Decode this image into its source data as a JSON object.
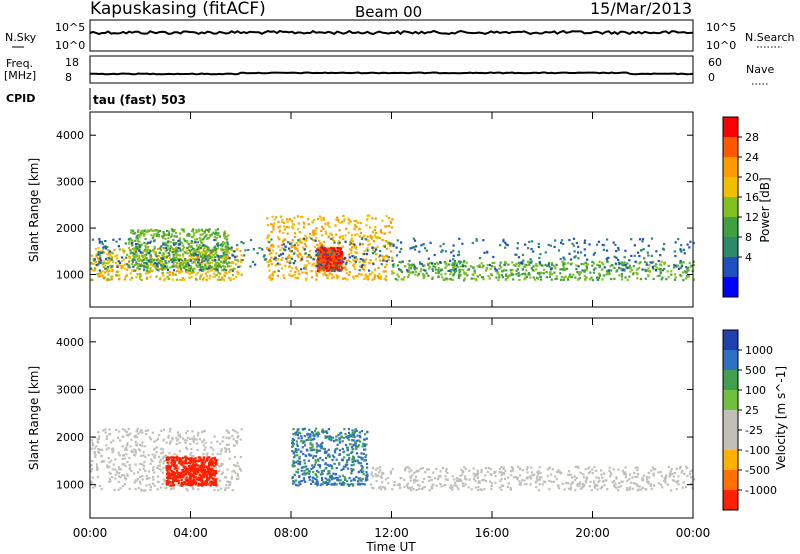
{
  "header": {
    "station": "Kapuskasing (fitACF)",
    "beam": "Beam 00",
    "date": "15/Mar/2013"
  },
  "top_panels": {
    "nsky_label": "N.Sky",
    "nsky_ticks": [
      "10^5",
      "10^0"
    ],
    "nsearch_label": "N.Search",
    "nsearch_ticks": [
      "10^5",
      "10^0"
    ],
    "freq_label_1": "Freq.",
    "freq_label_2": "[MHz]",
    "freq_ticks": [
      "18",
      "8"
    ],
    "nave_label": "Nave",
    "nave_ticks": [
      "60",
      "0"
    ],
    "cpid_label": "CPID",
    "cpid_text": "tau (fast) 503"
  },
  "power_panel": {
    "ylabel": "Slant Range [km]",
    "yticks": [
      "4000",
      "3000",
      "2000",
      "1000"
    ],
    "cbar_label": "Power [dB]",
    "cbar_ticks": [
      "28",
      "24",
      "20",
      "16",
      "12",
      "8",
      "4"
    ],
    "cbar_colors": [
      "#ff0000",
      "#ff5a00",
      "#ff9a00",
      "#f0c000",
      "#80c020",
      "#40a040",
      "#2a8a6a",
      "#2050c0",
      "#0000ff"
    ]
  },
  "velocity_panel": {
    "ylabel": "Slant Range [km]",
    "yticks": [
      "4000",
      "3000",
      "2000",
      "1000"
    ],
    "cbar_label": "Velocity [m s^-1]",
    "cbar_ticks": [
      "1000",
      "500",
      "100",
      "25",
      "-25",
      "-100",
      "-500",
      "-1000"
    ],
    "cbar_colors": [
      "#2040b0",
      "#3070c0",
      "#40a050",
      "#70c040",
      "#c0c0b8",
      "#c0c0b8",
      "#ffb000",
      "#ff7000",
      "#ff2000"
    ]
  },
  "x_axis": {
    "ticks": [
      "00:00",
      "04:00",
      "08:00",
      "12:00",
      "16:00",
      "20:00",
      "00:00"
    ],
    "label": "Time UT"
  },
  "chart_data": [
    {
      "type": "heatmap",
      "title": "Power",
      "xlabel": "Time UT",
      "ylabel": "Slant Range [km]",
      "xlim": [
        0,
        24
      ],
      "ylim": [
        300,
        4500
      ],
      "colorbar": {
        "label": "Power [dB]",
        "range": [
          0,
          32
        ]
      },
      "bands": [
        {
          "x": [
            0,
            6
          ],
          "y": [
            900,
            1600
          ],
          "value": 20
        },
        {
          "x": [
            1.5,
            5.5
          ],
          "y": [
            1100,
            2000
          ],
          "value": 14
        },
        {
          "x": [
            7,
            12
          ],
          "y": [
            900,
            2300
          ],
          "value": 22
        },
        {
          "x": [
            9,
            10
          ],
          "y": [
            1100,
            1600
          ],
          "value": 30
        },
        {
          "x": [
            12,
            24
          ],
          "y": [
            900,
            1300
          ],
          "value": 14
        },
        {
          "x": [
            0,
            24
          ],
          "y": [
            1100,
            1800
          ],
          "value": 6
        }
      ]
    },
    {
      "type": "heatmap",
      "title": "Velocity",
      "xlabel": "Time UT",
      "ylabel": "Slant Range [km]",
      "xlim": [
        0,
        24
      ],
      "ylim": [
        300,
        4500
      ],
      "colorbar": {
        "label": "Velocity [m s^-1]",
        "range": [
          -1000,
          1000
        ]
      },
      "bands": [
        {
          "x": [
            0,
            6
          ],
          "y": [
            900,
            2200
          ],
          "value": 0
        },
        {
          "x": [
            3,
            5
          ],
          "y": [
            1000,
            1600
          ],
          "value": -700
        },
        {
          "x": [
            8,
            11
          ],
          "y": [
            1000,
            2200
          ],
          "value": 300
        },
        {
          "x": [
            11,
            24
          ],
          "y": [
            900,
            1400
          ],
          "value": 0
        }
      ]
    }
  ]
}
